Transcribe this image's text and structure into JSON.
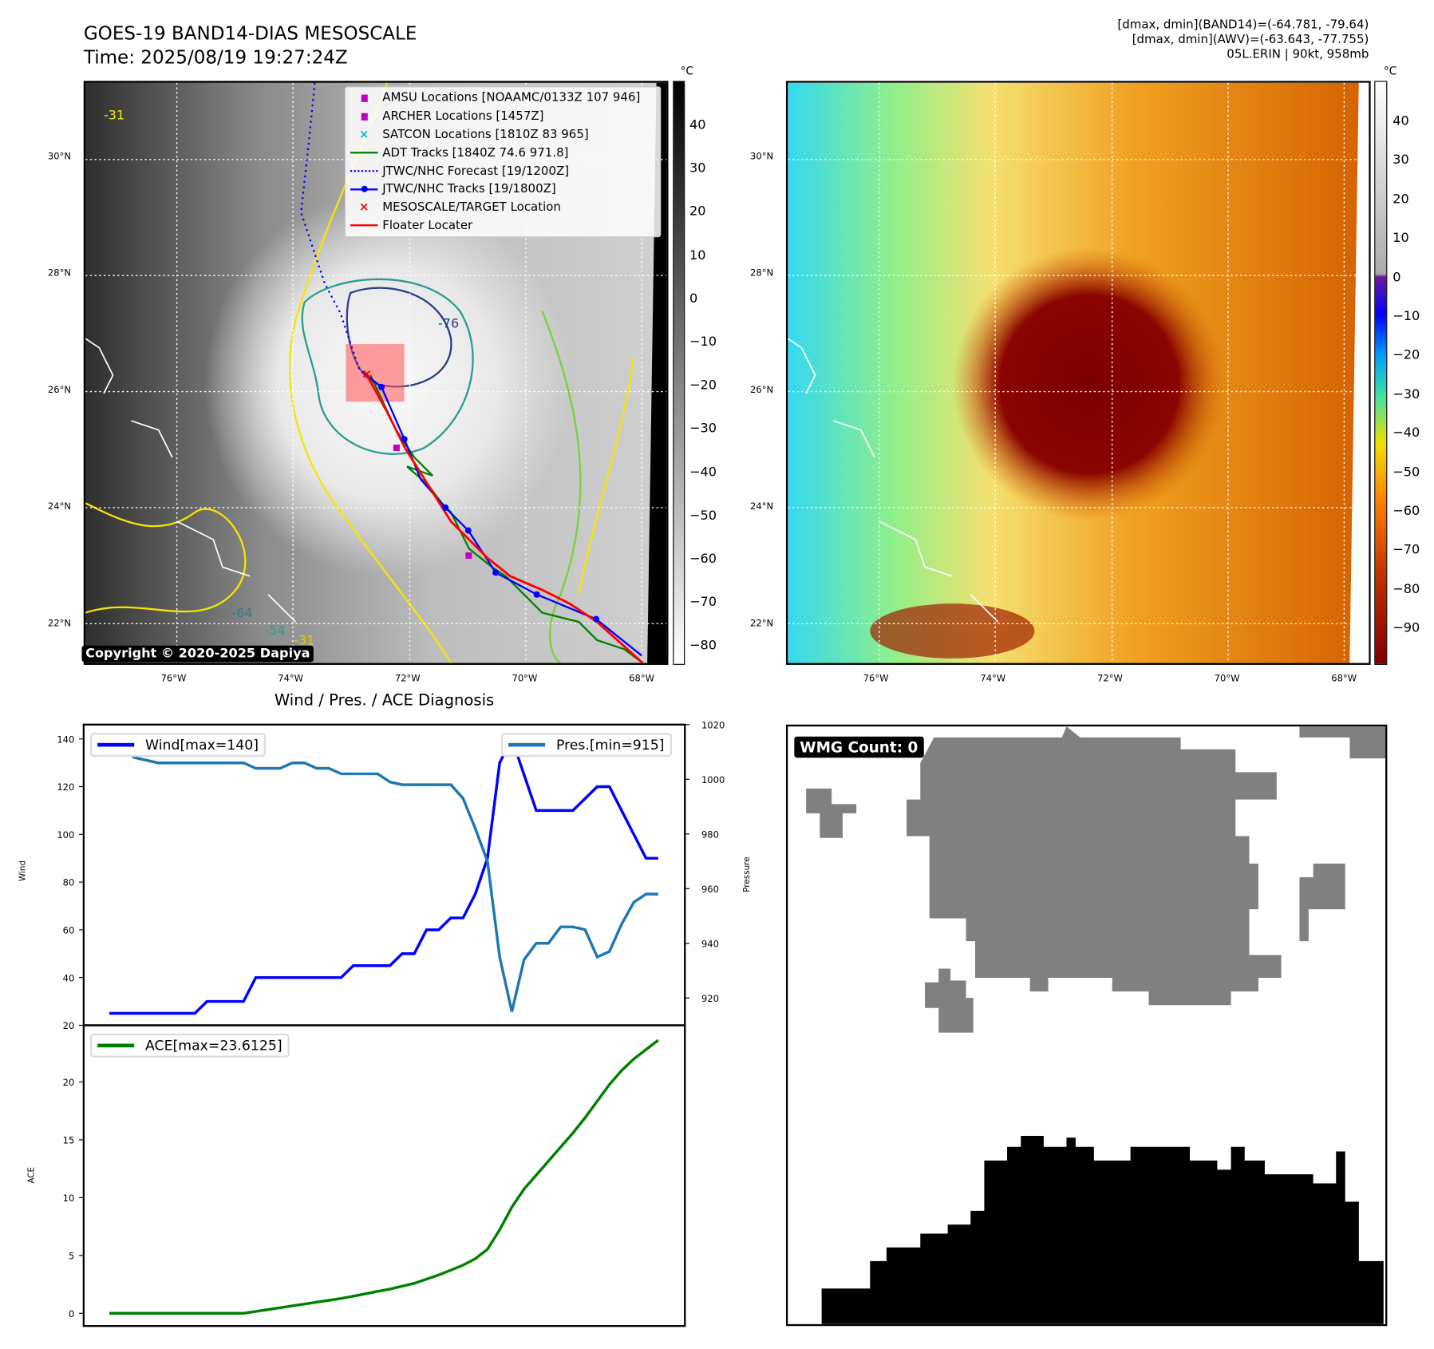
{
  "header": {
    "title": "GOES-19 BAND14-DIAS MESOSCALE",
    "time": "Time: 2025/08/19 19:27:24Z",
    "info_band14": "[dmax, dmin](BAND14)=(-64.781, -79.64)",
    "info_awv": "[dmax, dmin](AWV)=(-63.643, -77.755)",
    "storm": "05L.ERIN | 90kt, 958mb"
  },
  "map": {
    "lat_labels": [
      "30°N",
      "28°N",
      "26°N",
      "24°N",
      "22°N"
    ],
    "lon_labels": [
      "76°W",
      "74°W",
      "72°W",
      "70°W",
      "68°W"
    ],
    "copyright": "Copyright © 2020-2025 Dapiya",
    "legend": [
      {
        "label": "AMSU Locations [NOAAMC/0133Z 107 946]",
        "color": "#c000c0",
        "symbol": "square"
      },
      {
        "label": "ARCHER Locations [1457Z]",
        "color": "#c000c0",
        "symbol": "square"
      },
      {
        "label": "SATCON Locations [1810Z 83 965]",
        "color": "#00c0c0",
        "symbol": "x"
      },
      {
        "label": "ADT Tracks [1840Z 74.6 971.8]",
        "color": "#008000",
        "symbol": "line"
      },
      {
        "label": "JTWC/NHC Forecast [19/1200Z]",
        "color": "#0000ff",
        "symbol": "dotted"
      },
      {
        "label": "JTWC/NHC Tracks [19/1800Z]",
        "color": "#0000ff",
        "symbol": "line-dot"
      },
      {
        "label": "MESOSCALE/TARGET Location",
        "color": "#ff0000",
        "symbol": "x"
      },
      {
        "label": "Floater Locater",
        "color": "#ff0000",
        "symbol": "line"
      }
    ],
    "contour_labels": [
      "-76",
      "-31",
      "-64",
      "-54",
      "-31"
    ]
  },
  "colorbar_left": {
    "unit": "°C",
    "ticks": [
      "40",
      "30",
      "20",
      "10",
      "0",
      "−10",
      "−20",
      "−30",
      "−40",
      "−50",
      "−60",
      "−70",
      "−80"
    ]
  },
  "colorbar_right": {
    "unit": "°C",
    "ticks": [
      "40",
      "30",
      "20",
      "10",
      "0",
      "−10",
      "−20",
      "−30",
      "−40",
      "−50",
      "−60",
      "−70",
      "−80",
      "−90"
    ]
  },
  "wmg": {
    "label": "WMG Count: 0"
  },
  "chart_data": [
    {
      "type": "line",
      "title": "Wind / Pres. / ACE Diagnosis",
      "ylabel": "Wind",
      "y2label": "Pressure",
      "ylim": [
        20,
        146
      ],
      "y2lim": [
        910,
        1020
      ],
      "yticks": [
        20,
        40,
        60,
        80,
        100,
        120,
        140
      ],
      "y2ticks": [
        920,
        940,
        960,
        980,
        1000,
        1020
      ],
      "series": [
        {
          "name": "Wind[max=140]",
          "color": "#0000ff",
          "axis": "left",
          "values": [
            25,
            25,
            25,
            25,
            25,
            25,
            25,
            25,
            30,
            30,
            30,
            30,
            40,
            40,
            40,
            40,
            40,
            40,
            40,
            40,
            45,
            45,
            45,
            45,
            50,
            50,
            60,
            60,
            65,
            65,
            75,
            90,
            130,
            140,
            125,
            110,
            110,
            110,
            110,
            115,
            120,
            120,
            110,
            100,
            90,
            90
          ]
        },
        {
          "name": "Pres.[min=915]",
          "color": "#1f77b4",
          "axis": "right",
          "values": [
            1015,
            1015,
            1008,
            1007,
            1006,
            1006,
            1006,
            1006,
            1006,
            1006,
            1006,
            1006,
            1004,
            1004,
            1004,
            1006,
            1006,
            1004,
            1004,
            1002,
            1002,
            1002,
            1002,
            999,
            998,
            998,
            998,
            998,
            998,
            993,
            982,
            970,
            935,
            915,
            934,
            940,
            940,
            946,
            946,
            945,
            935,
            937,
            947,
            955,
            958,
            958
          ]
        }
      ]
    },
    {
      "type": "line",
      "ylabel": "ACE",
      "ylim": [
        -1.1,
        24.9
      ],
      "yticks": [
        0,
        5,
        10,
        15,
        20
      ],
      "series": [
        {
          "name": "ACE[max=23.6125]",
          "color": "#008000",
          "values": [
            0,
            0,
            0,
            0,
            0,
            0,
            0,
            0,
            0,
            0,
            0,
            0,
            0.16,
            0.32,
            0.48,
            0.64,
            0.8,
            0.96,
            1.12,
            1.28,
            1.48,
            1.69,
            1.89,
            2.09,
            2.34,
            2.59,
            2.95,
            3.31,
            3.73,
            4.16,
            4.72,
            5.53,
            7.22,
            9.18,
            10.74,
            11.95,
            13.16,
            14.37,
            15.58,
            16.9,
            18.34,
            19.78,
            20.99,
            21.99,
            22.8,
            23.6125
          ]
        }
      ]
    }
  ]
}
